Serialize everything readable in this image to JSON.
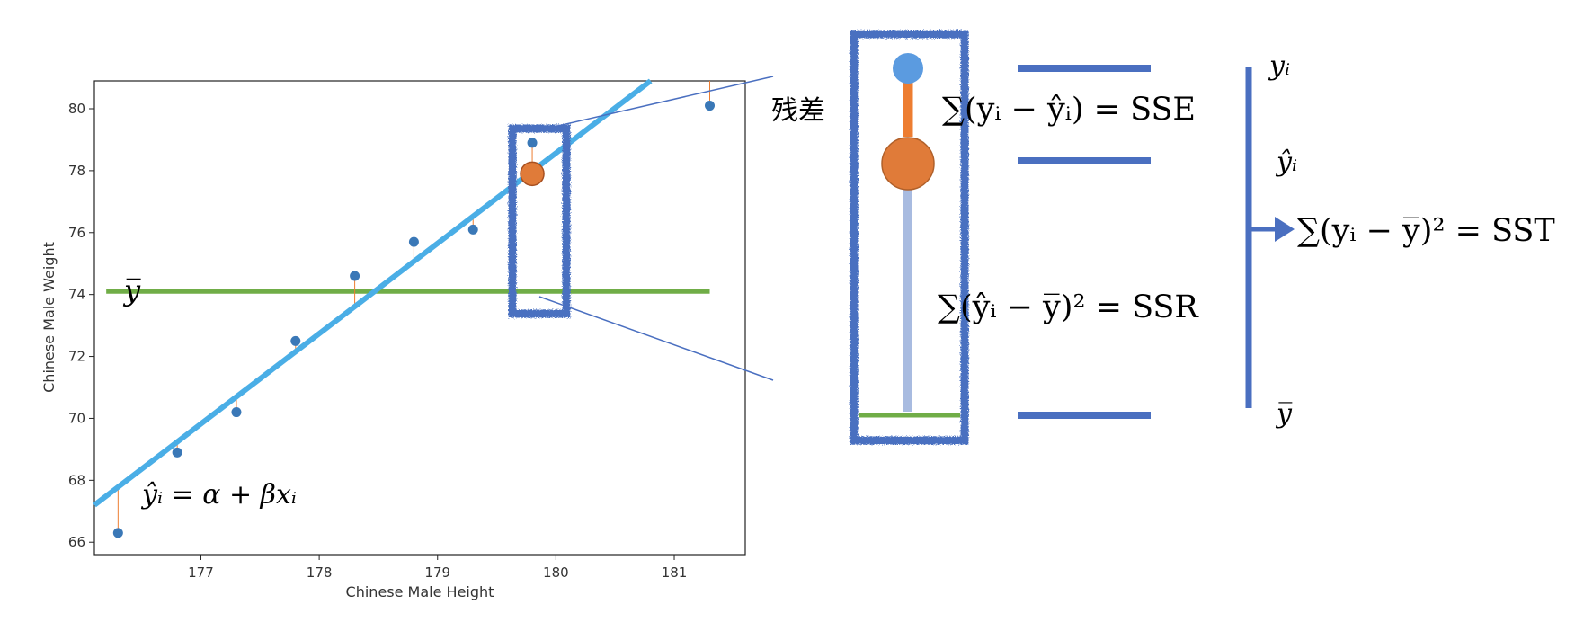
{
  "chart_data": {
    "type": "scatter",
    "xlabel": "Chinese Male Height",
    "ylabel": "Chinese Male Weight",
    "xlim": [
      176.1,
      181.6
    ],
    "ylim": [
      65.6,
      80.9
    ],
    "xticks": [
      177,
      178,
      179,
      180,
      181
    ],
    "yticks": [
      66,
      68,
      70,
      72,
      74,
      76,
      78,
      80
    ],
    "grid": false,
    "series": [
      {
        "x": [
          176.3,
          176.8,
          177.3,
          177.8,
          178.3,
          178.8,
          179.3,
          179.8,
          181.3
        ],
        "y": [
          66.3,
          68.9,
          70.2,
          72.5,
          74.6,
          75.7,
          76.1,
          78.9,
          80.1
        ]
      }
    ],
    "regression_line": {
      "x": [
        176.1,
        180.8
      ],
      "y": [
        67.2,
        80.9
      ]
    },
    "mean_line_y": 74.1,
    "mean_line_x": [
      176.2,
      181.3
    ],
    "highlight_point": {
      "x": 179.8,
      "y": 77.9
    },
    "annotations": {
      "mean_label": "y̅",
      "regression_label": "ŷᵢ = α + βxᵢ"
    }
  },
  "diagram": {
    "residual_label": "残差",
    "sse_formula": "∑(yᵢ − ŷᵢ) = SSE",
    "ssr_formula": "∑(ŷᵢ − y̅)² = SSR",
    "sst_formula": "∑(yᵢ − y̅)² = SST",
    "level_labels": {
      "y": "yᵢ",
      "yhat": "ŷᵢ",
      "ybar": "y̅"
    },
    "colors": {
      "regression": "#4aaee6",
      "mean": "#70ad47",
      "point": "#3a78b7",
      "residual": "#ed7d31",
      "highlight": "#e07b39",
      "frame": "#4a6fc0",
      "zoom_line": "#4a6fc0",
      "ssr_bar": "#a8bbe0"
    }
  }
}
